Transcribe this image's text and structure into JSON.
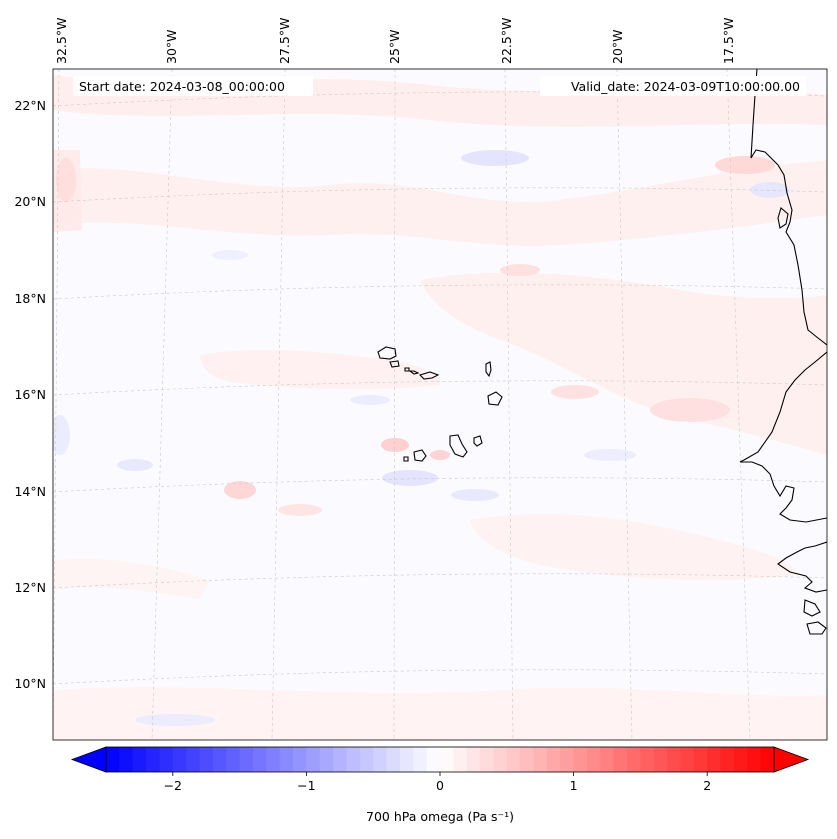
{
  "map": {
    "type": "omega-field-map",
    "start_date_label": "Start date: 2024-03-08_00:00:00",
    "valid_date_label": "Valid_date: 2024-03-09T10:00:00.00",
    "lon_labels": [
      "32.5°W",
      "30°W",
      "27.5°W",
      "25°W",
      "22.5°W",
      "20°W",
      "17.5°W"
    ],
    "lat_labels": [
      "22°N",
      "20°N",
      "18°N",
      "16°N",
      "14°N",
      "12°N",
      "10°N"
    ],
    "extent": {
      "lon_min": -32.5,
      "lon_max": -15.7,
      "lat_min": 8.9,
      "lat_max": 22.8
    },
    "grid": "dashed",
    "colors": {
      "coast": "#000000",
      "negative": "#0000ff",
      "positive": "#ff0000",
      "neutral": "#ffffff"
    }
  },
  "colorbar": {
    "label": "700 hPa omega (Pa s⁻¹)",
    "ticks": [
      "−2",
      "−1",
      "0",
      "1",
      "2"
    ],
    "tick_values": [
      -2,
      -1,
      0,
      1,
      2
    ],
    "vmin": -2.5,
    "vmax": 2.5,
    "extend": "both",
    "colormap": "bwr"
  }
}
